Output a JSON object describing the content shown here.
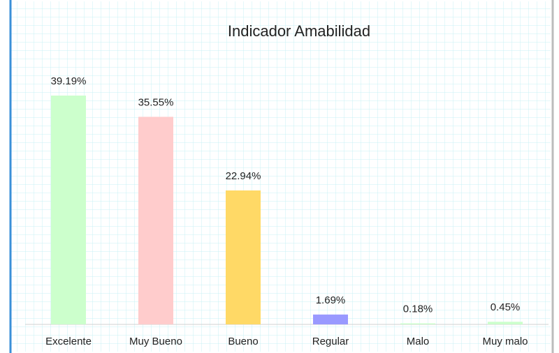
{
  "chart_data": {
    "type": "bar",
    "title": "Indicador Amabilidad",
    "categories": [
      "Excelente",
      "Muy Bueno",
      "Bueno",
      "Regular",
      "Malo",
      "Muy malo"
    ],
    "values": [
      39.19,
      35.55,
      22.94,
      1.69,
      0.18,
      0.45
    ],
    "value_labels": [
      "39.19%",
      "35.55%",
      "22.94%",
      "1.69%",
      "0.18%",
      "0.45%"
    ],
    "colors": [
      "#ccffcc",
      "#ffcccc",
      "#ffd966",
      "#9999ff",
      "#ccffcc",
      "#ccffcc"
    ]
  }
}
